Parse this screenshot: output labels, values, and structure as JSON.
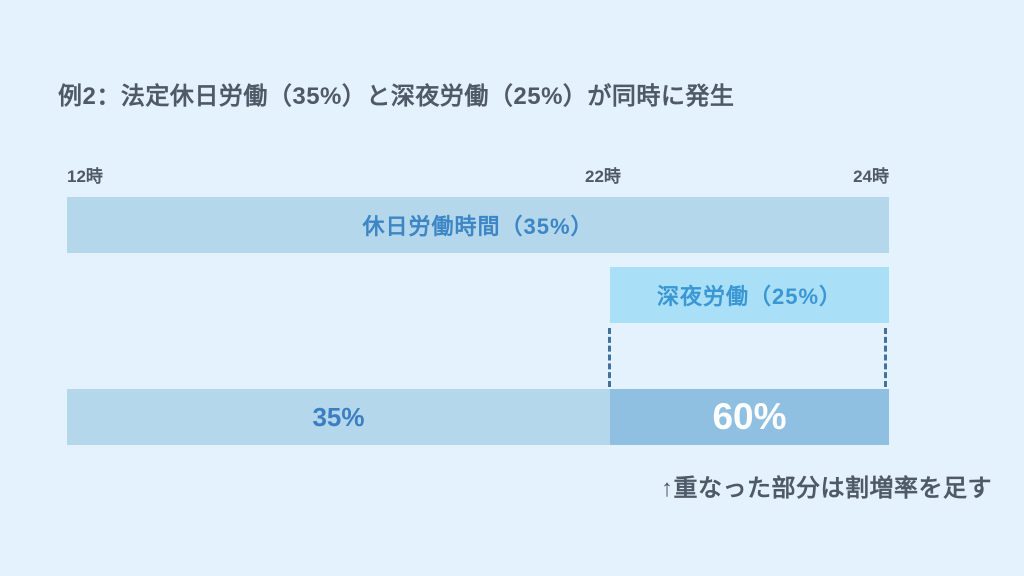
{
  "title": "例2：法定休日労働（35%）と深夜労働（25%）が同時に発生",
  "timeline": {
    "ticks": [
      {
        "label": "12時"
      },
      {
        "label": "22時"
      },
      {
        "label": "24時"
      }
    ]
  },
  "bars": {
    "holiday": {
      "label": "休日労働時間（35%）",
      "rate": "35%"
    },
    "night": {
      "label": "深夜労働（25%）",
      "rate": "25%"
    },
    "result": {
      "base_label": "35%",
      "combined_label": "60%"
    }
  },
  "annotation": "↑重なった部分は割増率を足す",
  "colors": {
    "background": "#e3f2fc",
    "holiday_bar": "#b5d7eb",
    "night_bar": "#a9e0f8",
    "combined_bar": "#8fc0e1",
    "bar_text_blue": "#3d86c6",
    "heading_text": "#4e5a67",
    "dashed_line": "#41719e",
    "combined_text": "#ffffff"
  }
}
